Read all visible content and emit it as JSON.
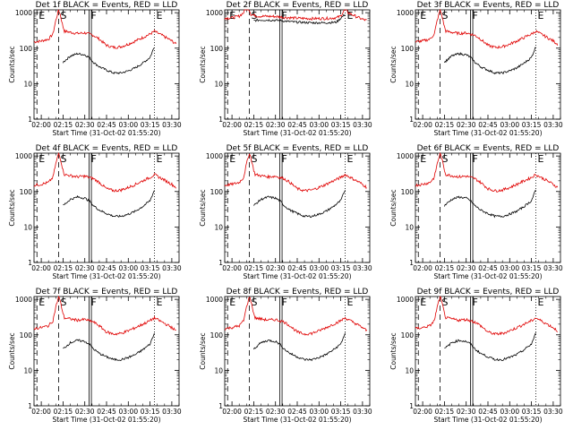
{
  "chart_data": {
    "type": "line",
    "shared": {
      "xlabel": "Start Time (31-Oct-02 01:55:20)",
      "ylabel": "Counts/sec",
      "x_tick_labels": [
        "02:00",
        "02:15",
        "02:30",
        "02:45",
        "03:00",
        "03:15",
        "03:30"
      ],
      "x_tick_minutes": [
        0,
        15,
        30,
        45,
        60,
        75,
        90
      ],
      "y_tick_labels": [
        "1",
        "10",
        "100",
        "1000"
      ],
      "y_scale": "log",
      "ylim": [
        1,
        1200
      ],
      "xlim_minutes_after_02_00": [
        -5,
        95
      ],
      "series_colors": {
        "events": "#000000",
        "lld": "#e00000"
      },
      "markers": [
        {
          "label": "E",
          "minute": -3,
          "line": "dashed"
        },
        {
          "label": "S",
          "minute": 12,
          "line": "dashed"
        },
        {
          "label": "F",
          "minute": 33,
          "line": "solid"
        },
        {
          "label": "E",
          "minute": 78,
          "line": "dotted"
        }
      ]
    },
    "panels": [
      {
        "title": "Det 1f BLACK = Events, RED = LLD",
        "variant": "a"
      },
      {
        "title": "Det 2f BLACK = Events, RED = LLD",
        "variant": "b"
      },
      {
        "title": "Det 3f BLACK = Events, RED = LLD",
        "variant": "a"
      },
      {
        "title": "Det 4f BLACK = Events, RED = LLD",
        "variant": "a"
      },
      {
        "title": "Det 5f BLACK = Events, RED = LLD",
        "variant": "a"
      },
      {
        "title": "Det 6f BLACK = Events, RED = LLD",
        "variant": "a"
      },
      {
        "title": "Det 7f BLACK = Events, RED = LLD",
        "variant": "a"
      },
      {
        "title": "Det 8f BLACK = Events, RED = LLD",
        "variant": "a"
      },
      {
        "title": "Det 9f BLACK = Events, RED = LLD",
        "variant": "a"
      }
    ],
    "series_profiles": {
      "a": {
        "lld": {
          "x": [
            -5,
            0,
            5,
            8,
            10,
            12,
            13,
            15,
            16,
            20,
            25,
            30,
            33,
            36,
            40,
            45,
            50,
            55,
            60,
            65,
            70,
            75,
            78,
            80,
            85,
            90,
            93
          ],
          "y": [
            150,
            160,
            180,
            250,
            600,
            1200,
            900,
            400,
            300,
            280,
            260,
            270,
            250,
            230,
            180,
            120,
            105,
            110,
            130,
            160,
            200,
            250,
            300,
            270,
            210,
            160,
            130
          ]
        },
        "events": {
          "x": [
            15,
            20,
            25,
            30,
            33,
            36,
            40,
            45,
            50,
            55,
            60,
            65,
            70,
            75,
            78
          ],
          "y": [
            40,
            60,
            70,
            65,
            55,
            40,
            30,
            24,
            20,
            20,
            23,
            28,
            38,
            55,
            110
          ]
        }
      },
      "b": {
        "lld": {
          "x": [
            -5,
            0,
            5,
            8,
            10,
            12,
            13,
            15,
            18,
            25,
            30,
            33,
            36,
            45,
            55,
            65,
            72,
            75,
            78,
            80,
            85,
            90,
            93
          ],
          "y": [
            700,
            720,
            800,
            1000,
            1500,
            1200,
            900,
            850,
            800,
            790,
            780,
            760,
            740,
            700,
            680,
            690,
            720,
            800,
            1300,
            1000,
            800,
            650,
            600
          ]
        },
        "events": {
          "x": [
            15,
            20,
            25,
            30,
            33,
            36,
            40,
            45,
            55,
            65,
            72,
            75,
            78
          ],
          "y": [
            600,
            620,
            620,
            610,
            600,
            580,
            560,
            540,
            520,
            520,
            540,
            700,
            900
          ]
        }
      }
    }
  }
}
